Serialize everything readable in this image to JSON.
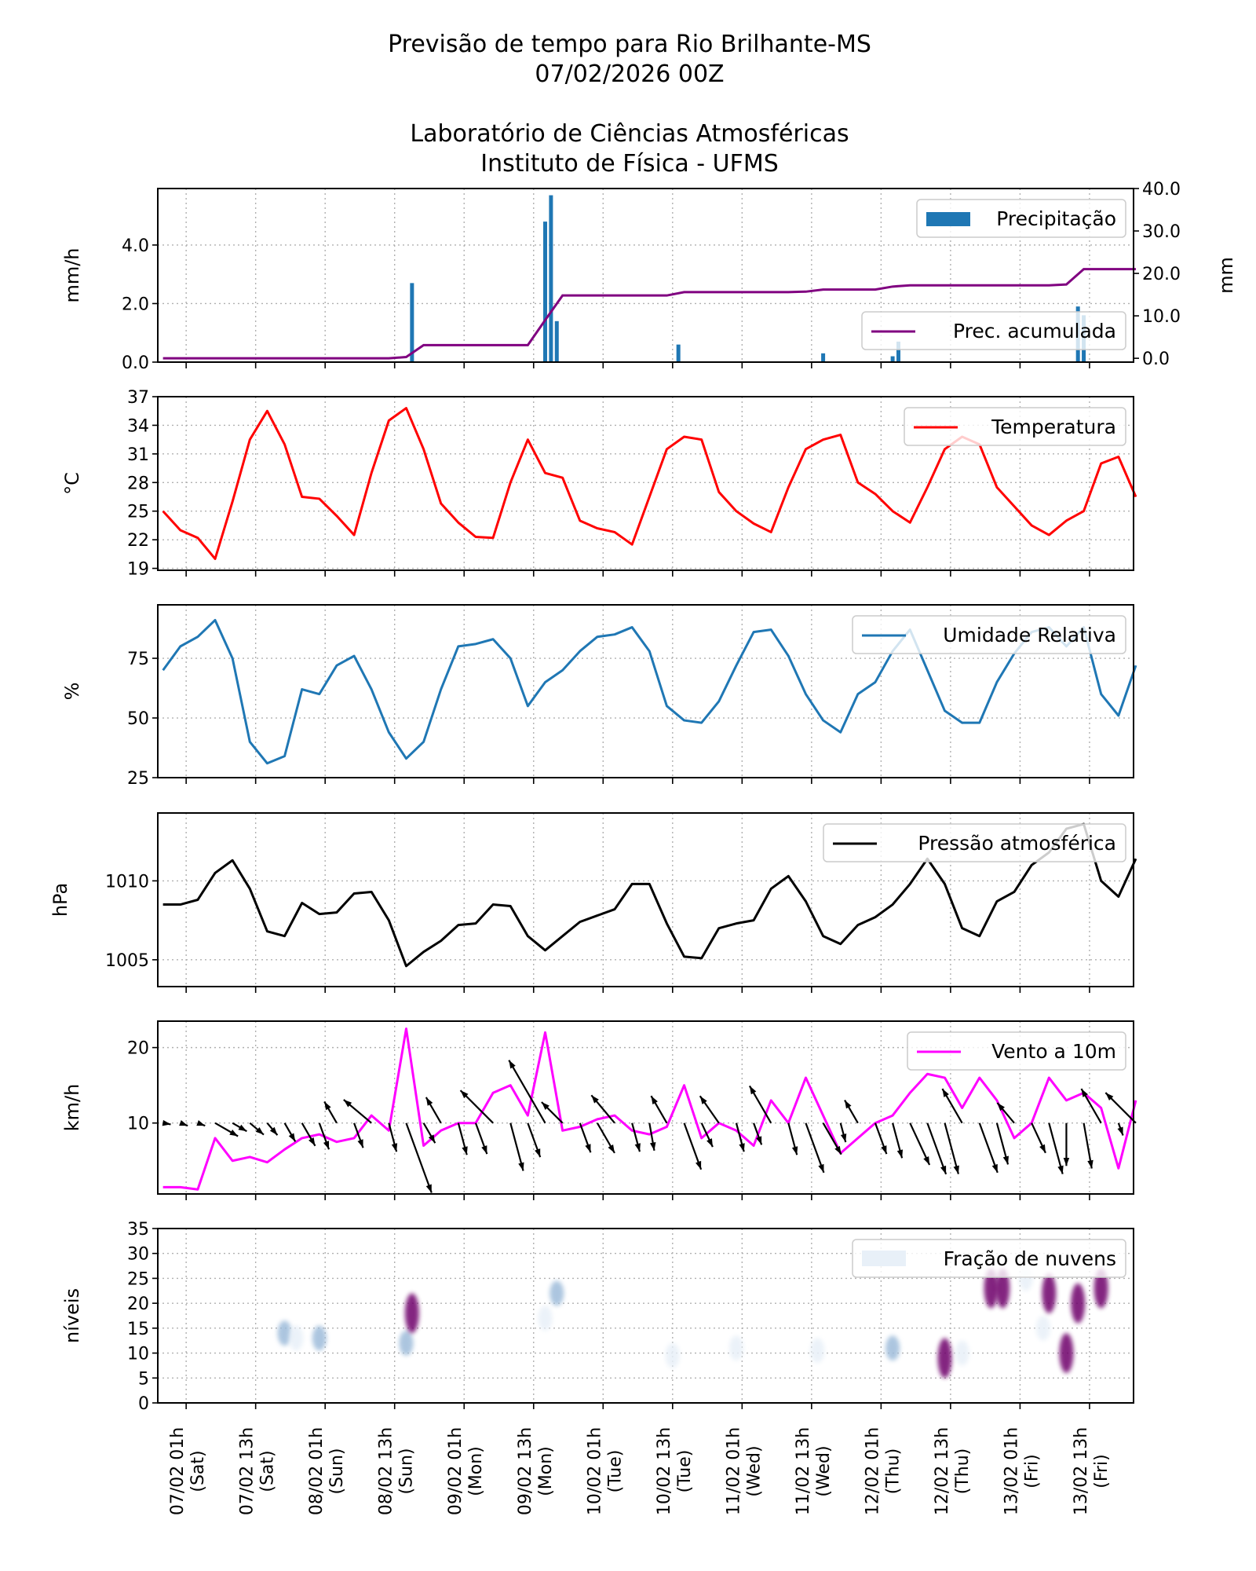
{
  "title": [
    "Previsão de tempo para Rio Brilhante-MS",
    "07/02/2026 00Z",
    "Laboratório de Ciências Atmosféricas",
    "Instituto de Física - UFMS"
  ],
  "x_axis": {
    "series_start": "06/02 21h",
    "series_step_hours": 3,
    "ticks": [
      [
        "07/02 01h",
        "(Sat)"
      ],
      [
        "07/02 13h",
        "(Sat)"
      ],
      [
        "08/02 01h",
        "(Sun)"
      ],
      [
        "08/02 13h",
        "(Sun)"
      ],
      [
        "09/02 01h",
        "(Mon)"
      ],
      [
        "09/02 13h",
        "(Mon)"
      ],
      [
        "10/02 01h",
        "(Tue)"
      ],
      [
        "10/02 13h",
        "(Tue)"
      ],
      [
        "11/02 01h",
        "(Wed)"
      ],
      [
        "11/02 13h",
        "(Wed)"
      ],
      [
        "12/02 01h",
        "(Thu)"
      ],
      [
        "12/02 13h",
        "(Thu)"
      ],
      [
        "13/02 01h",
        "(Fri)"
      ],
      [
        "13/02 13h",
        "(Fri)"
      ]
    ],
    "grid": true
  },
  "chart_data": [
    {
      "type": "bar",
      "ylabel": "mm/h",
      "y2label": "mm",
      "ylim": [
        0,
        5.93
      ],
      "y2lim": [
        -0.9,
        40
      ],
      "yticks": [
        0,
        2,
        4
      ],
      "ytick_labels": [
        "0.0",
        "2.0",
        "4.0"
      ],
      "y2ticks": [
        0,
        10,
        20,
        30,
        40
      ],
      "y2tick_labels": [
        "0.0",
        "10.0",
        "20.0",
        "30.0",
        "40.0"
      ],
      "grid": true,
      "series": [
        {
          "name": "Precipitação",
          "type": "bar",
          "color": "#1f77b4",
          "legend": "top-right",
          "points": [
            {
              "time": "08/02 16h",
              "value": 2.7
            },
            {
              "time": "09/02 15h",
              "value": 4.8
            },
            {
              "time": "09/02 16h",
              "value": 5.7
            },
            {
              "time": "09/02 17h",
              "value": 1.4
            },
            {
              "time": "10/02 14h",
              "value": 0.6
            },
            {
              "time": "11/02 15h",
              "value": 0.3
            },
            {
              "time": "12/02 03h",
              "value": 0.2
            },
            {
              "time": "12/02 04h",
              "value": 0.7
            },
            {
              "time": "13/02 11h",
              "value": 1.9
            },
            {
              "time": "13/02 12h",
              "value": 1.6
            }
          ]
        },
        {
          "name": "Prec. acumulada",
          "type": "line",
          "axis": "right",
          "color": "#800080",
          "legend": "center-right",
          "values": [
            0,
            0,
            0,
            0,
            0,
            0,
            0,
            0,
            0,
            0,
            0,
            0,
            0,
            0,
            0.3,
            3.1,
            3.1,
            3.1,
            3.1,
            3.1,
            3.1,
            3.1,
            9,
            14.8,
            14.8,
            14.8,
            14.8,
            14.8,
            14.8,
            14.8,
            15.6,
            15.6,
            15.6,
            15.6,
            15.6,
            15.6,
            15.6,
            15.7,
            16.2,
            16.2,
            16.2,
            16.2,
            16.9,
            17.2,
            17.2,
            17.2,
            17.2,
            17.2,
            17.2,
            17.2,
            17.2,
            17.2,
            17.4,
            21,
            21,
            21,
            21
          ]
        }
      ]
    },
    {
      "type": "line",
      "ylabel": "°C",
      "ylim": [
        18.8,
        37
      ],
      "yticks": [
        19,
        22,
        25,
        28,
        31,
        34,
        37
      ],
      "ytick_labels": [
        "19",
        "22",
        "25",
        "28",
        "31",
        "34",
        "37"
      ],
      "grid": true,
      "series": [
        {
          "name": "Temperatura",
          "color": "#ff0000",
          "legend": "top-right",
          "values": [
            25,
            23,
            22.2,
            20,
            26,
            32.5,
            35.5,
            32,
            26.5,
            26.3,
            24.5,
            22.5,
            29,
            34.5,
            35.8,
            31.5,
            25.8,
            23.8,
            22.3,
            22.2,
            28,
            32.5,
            29,
            28.5,
            24,
            23.2,
            22.8,
            21.5,
            26.5,
            31.5,
            32.8,
            32.5,
            27,
            25,
            23.7,
            22.8,
            27.5,
            31.5,
            32.5,
            33,
            28,
            26.8,
            25,
            23.8,
            27.5,
            31.5,
            32.8,
            32,
            27.5,
            25.5,
            23.5,
            22.5,
            24,
            25,
            30,
            30.7,
            26.5
          ]
        }
      ]
    },
    {
      "type": "line",
      "ylabel": "%",
      "ylim": [
        25,
        97.4
      ],
      "yticks": [
        25,
        50,
        75
      ],
      "ytick_labels": [
        "25",
        "50",
        "75"
      ],
      "grid": true,
      "series": [
        {
          "name": "Umidade Relativa",
          "color": "#1f77b4",
          "legend": "top-right",
          "values": [
            70,
            80,
            84,
            91,
            75,
            40,
            31,
            34,
            62,
            60,
            72,
            76,
            62,
            44,
            33,
            40,
            62,
            80,
            81,
            83,
            75,
            55,
            65,
            70,
            78,
            84,
            85,
            88,
            78,
            55,
            49,
            48,
            57,
            72,
            86,
            87,
            76,
            60,
            49,
            44,
            60,
            65,
            78,
            87,
            70,
            53,
            48,
            48,
            65,
            77,
            86,
            88,
            80,
            88,
            60,
            51,
            72
          ]
        }
      ]
    },
    {
      "type": "line",
      "ylabel": "hPa",
      "ylim": [
        1003.3,
        1014.3
      ],
      "yticks": [
        1005,
        1010
      ],
      "ytick_labels": [
        "1005",
        "1010"
      ],
      "grid": true,
      "series": [
        {
          "name": "Pressão atmosférica",
          "color": "#000000",
          "legend": "top-right",
          "values": [
            1008.5,
            1008.5,
            1008.8,
            1010.5,
            1011.3,
            1009.5,
            1006.8,
            1006.5,
            1008.6,
            1007.9,
            1008,
            1009.2,
            1009.3,
            1007.5,
            1004.6,
            1005.5,
            1006.2,
            1007.2,
            1007.3,
            1008.5,
            1008.4,
            1006.5,
            1005.6,
            1006.5,
            1007.4,
            1007.8,
            1008.2,
            1009.8,
            1009.8,
            1007.3,
            1005.2,
            1005.1,
            1007,
            1007.3,
            1007.5,
            1009.5,
            1010.3,
            1008.7,
            1006.5,
            1006,
            1007.2,
            1007.7,
            1008.5,
            1009.8,
            1011.4,
            1009.8,
            1007,
            1006.5,
            1008.7,
            1009.3,
            1011,
            1011.8,
            1013.3,
            1013.6,
            1010,
            1009,
            1011.4
          ]
        }
      ]
    },
    {
      "type": "line",
      "ylabel": "km/h",
      "ylim": [
        0.6,
        23.5
      ],
      "yticks": [
        10,
        20
      ],
      "ytick_labels": [
        "10",
        "20"
      ],
      "grid": true,
      "series": [
        {
          "name": "Vento a 10m",
          "color": "#ff00ff",
          "legend": "top-right",
          "values": [
            1.5,
            1.5,
            1.2,
            8,
            5,
            5.5,
            4.8,
            6.5,
            8,
            8.5,
            7.5,
            8,
            11,
            9,
            22.5,
            7,
            9,
            10,
            10,
            14,
            15,
            11,
            22,
            9,
            9.5,
            10.5,
            11,
            9,
            8.5,
            9.5,
            15,
            8,
            10,
            9,
            7,
            13,
            10,
            16,
            11,
            6,
            8,
            10,
            11,
            14,
            16.5,
            16,
            12,
            16,
            13,
            8,
            10,
            16,
            13,
            14,
            12,
            4,
            13
          ]
        }
      ],
      "wind_vectors": {
        "color": "#000000",
        "baseline_kmh": 10,
        "direction_from_deg": [
          280,
          290,
          290,
          300,
          300,
          310,
          320,
          330,
          330,
          340,
          150,
          340,
          130,
          345,
          340,
          330,
          150,
          345,
          340,
          135,
          345,
          340,
          150,
          135,
          340,
          330,
          140,
          345,
          350,
          150,
          340,
          335,
          145,
          345,
          340,
          150,
          345,
          340,
          330,
          345,
          150,
          340,
          345,
          335,
          340,
          345,
          150,
          340,
          345,
          140,
          335,
          345,
          0,
          350,
          150,
          340,
          135
        ]
      }
    },
    {
      "type": "heatmap",
      "ylabel": "níveis",
      "ylim": [
        0,
        35
      ],
      "yticks": [
        0,
        5,
        10,
        15,
        20,
        25,
        30,
        35
      ],
      "ytick_labels": [
        "0",
        "5",
        "10",
        "15",
        "20",
        "25",
        "30",
        "35"
      ],
      "grid": true,
      "series": [
        {
          "name": "Fração de nuvens",
          "colormap": [
            "#e8f0f8",
            "#9ebcda",
            "#8c6bb1",
            "#6e016b"
          ],
          "legend": "top-right",
          "cells": [
            {
              "time": "07/02 18h",
              "level": 14,
              "fraction": 0.35
            },
            {
              "time": "07/02 20h",
              "level": 13,
              "fraction": 0.2
            },
            {
              "time": "08/02 00h",
              "level": 13,
              "fraction": 0.45
            },
            {
              "time": "08/02 15h",
              "level": 12,
              "fraction": 0.5
            },
            {
              "time": "08/02 16h",
              "level": 18,
              "fraction": 1.0
            },
            {
              "time": "09/02 15h",
              "level": 17,
              "fraction": 0.2
            },
            {
              "time": "09/02 17h",
              "level": 22,
              "fraction": 0.45
            },
            {
              "time": "10/02 13h",
              "level": 9.5,
              "fraction": 0.2
            },
            {
              "time": "10/02 24h",
              "level": 11,
              "fraction": 0.25
            },
            {
              "time": "11/02 14h",
              "level": 10.5,
              "fraction": 0.25
            },
            {
              "time": "12/02 03h",
              "level": 11,
              "fraction": 0.4
            },
            {
              "time": "12/02 12h",
              "level": 9,
              "fraction": 0.85
            },
            {
              "time": "12/02 15h",
              "level": 10,
              "fraction": 0.3
            },
            {
              "time": "12/02 20h",
              "level": 23,
              "fraction": 0.95
            },
            {
              "time": "12/02 22h",
              "level": 23,
              "fraction": 0.95
            },
            {
              "time": "13/02 02h",
              "level": 25,
              "fraction": 0.3
            },
            {
              "time": "13/02 05h",
              "level": 15,
              "fraction": 0.25
            },
            {
              "time": "13/02 06h",
              "level": 22,
              "fraction": 0.95
            },
            {
              "time": "13/02 09h",
              "level": 10,
              "fraction": 0.9
            },
            {
              "time": "13/02 11h",
              "level": 20,
              "fraction": 1.0
            },
            {
              "time": "13/02 15h",
              "level": 23,
              "fraction": 0.9
            }
          ]
        }
      ]
    }
  ]
}
